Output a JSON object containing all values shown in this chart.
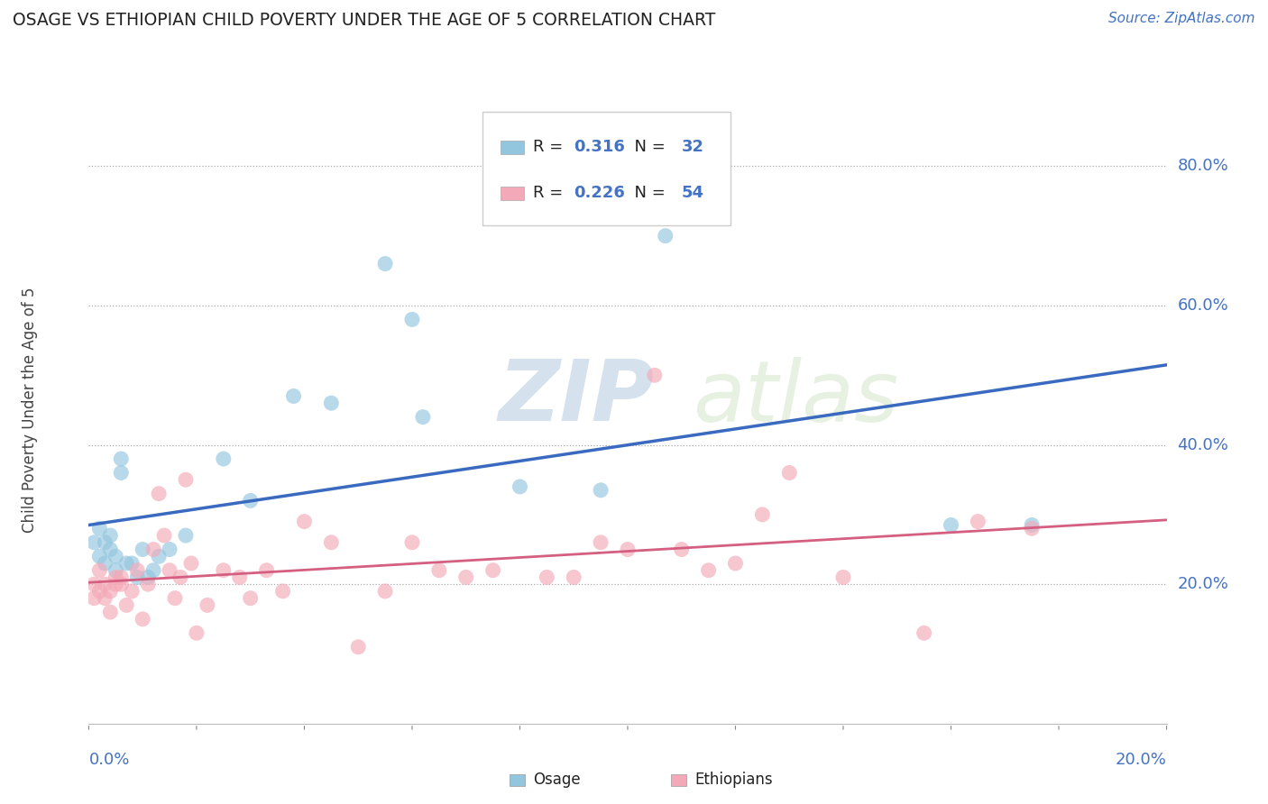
{
  "title": "OSAGE VS ETHIOPIAN CHILD POVERTY UNDER THE AGE OF 5 CORRELATION CHART",
  "source": "Source: ZipAtlas.com",
  "ylabel": "Child Poverty Under the Age of 5",
  "ytick_vals": [
    0.2,
    0.4,
    0.6,
    0.8
  ],
  "xlim": [
    0.0,
    0.2
  ],
  "ylim": [
    -0.05,
    0.92
  ],
  "plot_ylim": [
    0.0,
    0.9
  ],
  "osage_color": "#92c5de",
  "ethiopians_color": "#f4a9b8",
  "osage_line_color": "#3a6abf",
  "ethiopians_line_color": "#d45f80",
  "legend_text_color": "#4472c4",
  "watermark_color": "#d0dff0",
  "osage_x": [
    0.001,
    0.002,
    0.002,
    0.003,
    0.003,
    0.004,
    0.004,
    0.005,
    0.005,
    0.006,
    0.006,
    0.007,
    0.008,
    0.009,
    0.01,
    0.011,
    0.012,
    0.013,
    0.015,
    0.018,
    0.025,
    0.03,
    0.038,
    0.045,
    0.055,
    0.06,
    0.062,
    0.08,
    0.095,
    0.107,
    0.16,
    0.175
  ],
  "osage_y": [
    0.26,
    0.28,
    0.24,
    0.23,
    0.26,
    0.25,
    0.27,
    0.22,
    0.24,
    0.36,
    0.38,
    0.23,
    0.23,
    0.21,
    0.25,
    0.21,
    0.22,
    0.24,
    0.25,
    0.27,
    0.38,
    0.32,
    0.47,
    0.46,
    0.66,
    0.58,
    0.44,
    0.34,
    0.335,
    0.7,
    0.285,
    0.285
  ],
  "ethiopians_x": [
    0.001,
    0.001,
    0.002,
    0.002,
    0.003,
    0.003,
    0.004,
    0.004,
    0.005,
    0.005,
    0.006,
    0.006,
    0.007,
    0.008,
    0.009,
    0.01,
    0.011,
    0.012,
    0.013,
    0.014,
    0.015,
    0.016,
    0.017,
    0.018,
    0.019,
    0.02,
    0.022,
    0.025,
    0.028,
    0.03,
    0.033,
    0.036,
    0.04,
    0.045,
    0.05,
    0.055,
    0.06,
    0.065,
    0.07,
    0.075,
    0.085,
    0.09,
    0.095,
    0.1,
    0.105,
    0.11,
    0.115,
    0.12,
    0.125,
    0.13,
    0.14,
    0.155,
    0.165,
    0.175
  ],
  "ethiopians_y": [
    0.2,
    0.18,
    0.22,
    0.19,
    0.2,
    0.18,
    0.16,
    0.19,
    0.21,
    0.2,
    0.21,
    0.2,
    0.17,
    0.19,
    0.22,
    0.15,
    0.2,
    0.25,
    0.33,
    0.27,
    0.22,
    0.18,
    0.21,
    0.35,
    0.23,
    0.13,
    0.17,
    0.22,
    0.21,
    0.18,
    0.22,
    0.19,
    0.29,
    0.26,
    0.11,
    0.19,
    0.26,
    0.22,
    0.21,
    0.22,
    0.21,
    0.21,
    0.26,
    0.25,
    0.5,
    0.25,
    0.22,
    0.23,
    0.3,
    0.36,
    0.21,
    0.13,
    0.29,
    0.28
  ]
}
